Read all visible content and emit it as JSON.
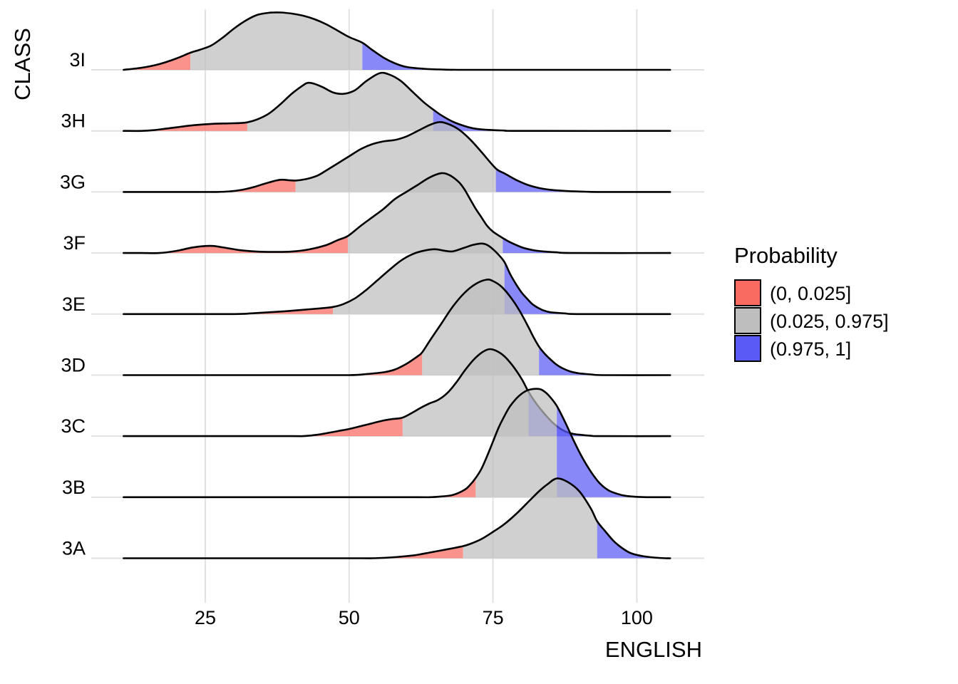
{
  "chart_data": {
    "type": "ridgeline-density",
    "title": "",
    "xlabel": "ENGLISH",
    "ylabel": "CLASS",
    "x_ticks": [
      "25",
      "50",
      "75",
      "100"
    ],
    "x_tick_values": [
      25,
      50,
      75,
      100
    ],
    "x_range": [
      6,
      112
    ],
    "grid": "major-only",
    "legend": {
      "title": "Probability",
      "position": "right",
      "entries": [
        {
          "label": "(0, 0.025]",
          "color": "#F96A60"
        },
        {
          "label": "(0.025, 0.975]",
          "color": "#BEBEBE"
        },
        {
          "label": "(0.975, 1]",
          "color": "#5A5AF6"
        }
      ]
    },
    "colors": {
      "low_tail": "#F96A60",
      "middle": "#BEBEBE",
      "high_tail": "#5A5AF6",
      "outline": "#000000",
      "gridline": "#E1E1E1",
      "fill_opacity": 0.72
    },
    "series": [
      {
        "class": "3I",
        "q_low": 22.4,
        "q_high": 52.3,
        "points": [
          [
            10.8,
            0
          ],
          [
            14,
            3
          ],
          [
            17,
            8
          ],
          [
            20,
            16
          ],
          [
            22.4,
            24
          ],
          [
            24,
            28
          ],
          [
            26,
            34
          ],
          [
            28,
            45
          ],
          [
            30,
            58
          ],
          [
            32,
            69
          ],
          [
            34,
            77
          ],
          [
            36,
            80
          ],
          [
            38,
            80.5
          ],
          [
            40,
            79
          ],
          [
            42,
            76
          ],
          [
            44,
            71
          ],
          [
            46,
            64
          ],
          [
            48,
            55
          ],
          [
            50,
            46
          ],
          [
            52.3,
            38
          ],
          [
            54,
            28
          ],
          [
            56,
            17
          ],
          [
            58,
            9
          ],
          [
            60,
            4
          ],
          [
            63,
            1.5
          ],
          [
            66,
            0.5
          ],
          [
            70,
            0
          ],
          [
            85,
            0
          ],
          [
            105.8,
            0
          ]
        ]
      },
      {
        "class": "3H",
        "q_low": 32.3,
        "q_high": 64.6,
        "points": [
          [
            10.8,
            0
          ],
          [
            14,
            0
          ],
          [
            16,
            1
          ],
          [
            18,
            3
          ],
          [
            20,
            5
          ],
          [
            23,
            8
          ],
          [
            26.5,
            10
          ],
          [
            29,
            10.5
          ],
          [
            31,
            11
          ],
          [
            32.3,
            12
          ],
          [
            34,
            16
          ],
          [
            36,
            24
          ],
          [
            38,
            37
          ],
          [
            40,
            52
          ],
          [
            42,
            64
          ],
          [
            42.9,
            67.5
          ],
          [
            44,
            66
          ],
          [
            45.5,
            61
          ],
          [
            47.2,
            54
          ],
          [
            49,
            52
          ],
          [
            51,
            57
          ],
          [
            53,
            70
          ],
          [
            55.3,
            81
          ],
          [
            57,
            79
          ],
          [
            59,
            70
          ],
          [
            61,
            55
          ],
          [
            63,
            40
          ],
          [
            64.6,
            30
          ],
          [
            66,
            22
          ],
          [
            68,
            13
          ],
          [
            70,
            7
          ],
          [
            72,
            3
          ],
          [
            74,
            1.5
          ],
          [
            77,
            0.5
          ],
          [
            80,
            0
          ],
          [
            105.8,
            0
          ]
        ]
      },
      {
        "class": "3G",
        "q_low": 40.7,
        "q_high": 75.5,
        "points": [
          [
            10.8,
            0
          ],
          [
            20,
            0
          ],
          [
            27,
            0
          ],
          [
            29.5,
            1
          ],
          [
            31.4,
            3
          ],
          [
            33.5,
            7
          ],
          [
            35.5,
            12
          ],
          [
            37.9,
            17
          ],
          [
            39.5,
            16.5
          ],
          [
            40.7,
            16
          ],
          [
            42.5,
            18
          ],
          [
            44.5,
            23
          ],
          [
            46,
            30
          ],
          [
            48,
            40
          ],
          [
            50,
            50
          ],
          [
            52,
            60
          ],
          [
            54,
            67
          ],
          [
            56,
            71
          ],
          [
            58,
            73
          ],
          [
            60,
            78
          ],
          [
            62,
            86
          ],
          [
            64,
            94
          ],
          [
            65.6,
            98
          ],
          [
            67,
            96
          ],
          [
            69,
            88
          ],
          [
            71,
            74
          ],
          [
            73,
            56
          ],
          [
            75.5,
            33
          ],
          [
            77,
            26
          ],
          [
            79,
            17
          ],
          [
            81,
            10
          ],
          [
            83,
            5.5
          ],
          [
            85,
            3
          ],
          [
            88,
            1.2
          ],
          [
            91,
            0.4
          ],
          [
            94,
            0
          ],
          [
            105.8,
            0
          ]
        ]
      },
      {
        "class": "3F",
        "q_low": 49.8,
        "q_high": 76.7,
        "points": [
          [
            10.8,
            0
          ],
          [
            14,
            0
          ],
          [
            17,
            0
          ],
          [
            20,
            3
          ],
          [
            23,
            8
          ],
          [
            25.9,
            10
          ],
          [
            28,
            8
          ],
          [
            31,
            4
          ],
          [
            34,
            2
          ],
          [
            37,
            1.5
          ],
          [
            40,
            2
          ],
          [
            43,
            5
          ],
          [
            46,
            11
          ],
          [
            48,
            18
          ],
          [
            49.8,
            24
          ],
          [
            52,
            38
          ],
          [
            54,
            50
          ],
          [
            56,
            62
          ],
          [
            58,
            76
          ],
          [
            60,
            86
          ],
          [
            62,
            96
          ],
          [
            64,
            106
          ],
          [
            66,
            112
          ],
          [
            67.5,
            109
          ],
          [
            69,
            100
          ],
          [
            70,
            90
          ],
          [
            71,
            76
          ],
          [
            72,
            62
          ],
          [
            73,
            50
          ],
          [
            74,
            38
          ],
          [
            75,
            30
          ],
          [
            76.7,
            21
          ],
          [
            78,
            15
          ],
          [
            80,
            8
          ],
          [
            82,
            4
          ],
          [
            84,
            2
          ],
          [
            86,
            1
          ],
          [
            89,
            0
          ],
          [
            105.8,
            0
          ]
        ]
      },
      {
        "class": "3E",
        "q_low": 47.2,
        "q_high": 77,
        "points": [
          [
            10.8,
            0
          ],
          [
            20,
            0
          ],
          [
            30,
            0
          ],
          [
            33,
            1
          ],
          [
            36,
            2.5
          ],
          [
            39,
            4
          ],
          [
            42,
            6
          ],
          [
            45,
            8
          ],
          [
            47.2,
            10
          ],
          [
            49,
            14
          ],
          [
            51,
            22
          ],
          [
            53,
            34
          ],
          [
            55,
            48
          ],
          [
            57,
            62
          ],
          [
            59,
            75
          ],
          [
            61,
            84
          ],
          [
            63,
            89
          ],
          [
            64.9,
            91
          ],
          [
            66.5,
            89
          ],
          [
            68,
            88
          ],
          [
            70,
            93
          ],
          [
            71.5,
            97
          ],
          [
            73,
            99
          ],
          [
            74,
            97
          ],
          [
            75,
            91
          ],
          [
            76,
            83
          ],
          [
            77,
            73
          ],
          [
            78,
            56
          ],
          [
            79,
            42
          ],
          [
            80,
            30
          ],
          [
            81,
            21
          ],
          [
            82,
            13
          ],
          [
            83.5,
            6
          ],
          [
            85,
            2.5
          ],
          [
            87.5,
            1
          ],
          [
            90,
            0
          ],
          [
            105.8,
            0
          ]
        ]
      },
      {
        "class": "3D",
        "q_low": 62.7,
        "q_high": 83,
        "points": [
          [
            10.8,
            0
          ],
          [
            25,
            0
          ],
          [
            40,
            0
          ],
          [
            50,
            0
          ],
          [
            53,
            1.5
          ],
          [
            56,
            4
          ],
          [
            58,
            8
          ],
          [
            60,
            16
          ],
          [
            62,
            27
          ],
          [
            62.7,
            32
          ],
          [
            64,
            48
          ],
          [
            66,
            72
          ],
          [
            68,
            96
          ],
          [
            70,
            115
          ],
          [
            72,
            128
          ],
          [
            73.9,
            134
          ],
          [
            75,
            132
          ],
          [
            76.5,
            124
          ],
          [
            78,
            110
          ],
          [
            79.5,
            92
          ],
          [
            81,
            70
          ],
          [
            82,
            54
          ],
          [
            83,
            40
          ],
          [
            84,
            30
          ],
          [
            85,
            22
          ],
          [
            86,
            15
          ],
          [
            87,
            10
          ],
          [
            88.5,
            5
          ],
          [
            90,
            2.5
          ],
          [
            92,
            1
          ],
          [
            94.5,
            0
          ],
          [
            105.8,
            0
          ]
        ]
      },
      {
        "class": "3C",
        "q_low": 59.3,
        "q_high": 81.2,
        "points": [
          [
            10.8,
            0
          ],
          [
            25,
            0
          ],
          [
            40,
            0
          ],
          [
            42,
            0
          ],
          [
            44,
            1.5
          ],
          [
            46,
            4
          ],
          [
            48,
            7
          ],
          [
            50,
            10
          ],
          [
            52,
            14
          ],
          [
            54,
            18
          ],
          [
            56,
            22
          ],
          [
            57.5,
            24
          ],
          [
            59.3,
            26
          ],
          [
            61,
            33
          ],
          [
            62.5,
            40
          ],
          [
            64,
            46
          ],
          [
            65.5,
            51
          ],
          [
            67,
            60
          ],
          [
            68.5,
            74
          ],
          [
            70,
            91
          ],
          [
            71.5,
            106
          ],
          [
            73,
            117
          ],
          [
            74.3,
            122
          ],
          [
            75.5,
            120
          ],
          [
            77,
            112
          ],
          [
            78.5,
            98
          ],
          [
            80,
            80
          ],
          [
            81.2,
            62
          ],
          [
            82.5,
            46
          ],
          [
            84,
            31
          ],
          [
            85.5,
            18
          ],
          [
            87,
            9
          ],
          [
            88.5,
            4
          ],
          [
            90,
            2
          ],
          [
            92,
            0.5
          ],
          [
            94,
            0
          ],
          [
            105.8,
            0
          ]
        ]
      },
      {
        "class": "3B",
        "q_low": 72,
        "q_high": 86.1,
        "points": [
          [
            10.8,
            0
          ],
          [
            30,
            0
          ],
          [
            50,
            0
          ],
          [
            62,
            0
          ],
          [
            64,
            0
          ],
          [
            66,
            1
          ],
          [
            68,
            3
          ],
          [
            70,
            10
          ],
          [
            71,
            17
          ],
          [
            72,
            27
          ],
          [
            73,
            40
          ],
          [
            74,
            58
          ],
          [
            75,
            78
          ],
          [
            76,
            98
          ],
          [
            77,
            114
          ],
          [
            78,
            128
          ],
          [
            79.5,
            142
          ],
          [
            81,
            150
          ],
          [
            82.9,
            152
          ],
          [
            84,
            148
          ],
          [
            85,
            140
          ],
          [
            86.1,
            128
          ],
          [
            87.5,
            106
          ],
          [
            89,
            80
          ],
          [
            90.5,
            56
          ],
          [
            92,
            36
          ],
          [
            93.5,
            20
          ],
          [
            95,
            10
          ],
          [
            96.5,
            5
          ],
          [
            98,
            2
          ],
          [
            100,
            0.5
          ],
          [
            102,
            0
          ],
          [
            105.8,
            0
          ]
        ]
      },
      {
        "class": "3A",
        "q_low": 69.8,
        "q_high": 93.1,
        "points": [
          [
            10.8,
            0
          ],
          [
            25,
            0
          ],
          [
            40,
            0
          ],
          [
            52,
            0
          ],
          [
            54,
            0
          ],
          [
            57,
            1
          ],
          [
            60,
            3
          ],
          [
            62,
            5
          ],
          [
            64,
            8
          ],
          [
            66,
            11
          ],
          [
            68,
            14
          ],
          [
            69.8,
            17
          ],
          [
            71,
            20
          ],
          [
            73,
            27
          ],
          [
            75,
            37
          ],
          [
            77,
            48
          ],
          [
            79,
            62
          ],
          [
            81,
            78
          ],
          [
            83,
            94
          ],
          [
            84.5,
            104
          ],
          [
            86.1,
            112
          ],
          [
            88,
            107
          ],
          [
            90,
            94
          ],
          [
            92,
            70
          ],
          [
            93.1,
            52
          ],
          [
            94.5,
            38
          ],
          [
            96,
            24
          ],
          [
            97.5,
            14
          ],
          [
            99,
            7
          ],
          [
            101,
            3
          ],
          [
            103,
            1
          ],
          [
            105,
            0
          ],
          [
            105.8,
            0
          ]
        ]
      }
    ]
  }
}
